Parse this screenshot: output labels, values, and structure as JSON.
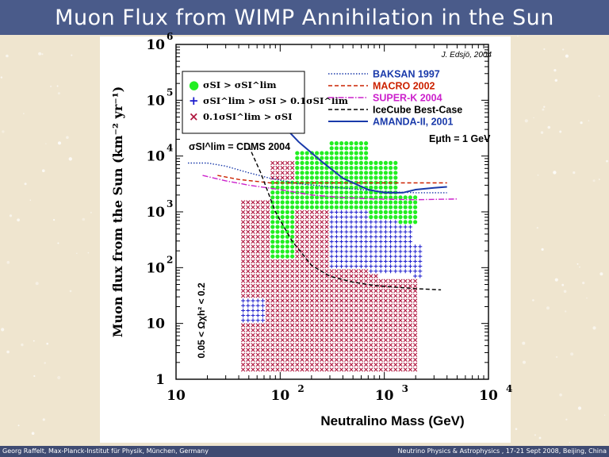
{
  "slide": {
    "title": "Muon Flux from WIMP Annihilation in the Sun",
    "footer_left": "Georg Raffelt, Max-Planck-Institut für Physik, München, Germany",
    "footer_right": "Neutrino Physics & Astrophysics , 17-21 Sept 2008, Beijing, China",
    "credit": "J. Edsjö, 2004"
  },
  "colors": {
    "title_bar": "#4a5b8a",
    "background": "#efe5cf",
    "green": "#22ee22",
    "blue": "#1a1acc",
    "red": "#b01840",
    "macro": "#cc2200",
    "superk": "#cc22cc",
    "amanda": "#1a3aaa",
    "baksan": "#1a3aaa",
    "icecube": "#000000"
  },
  "chart_data": {
    "type": "scatter",
    "title": "Muon Flux from WIMP Annihilation in the Sun",
    "xlabel": "Neutralino Mass (GeV)",
    "ylabel": "Muon flux from the Sun (km⁻² yr⁻¹)",
    "xscale": "log",
    "yscale": "log",
    "xlim": [
      10,
      10000
    ],
    "ylim": [
      1,
      1000000
    ],
    "x_ticks": [
      {
        "value": 10,
        "base": "10",
        "exp": ""
      },
      {
        "value": 100,
        "base": "10",
        "exp": "2"
      },
      {
        "value": 1000,
        "base": "10",
        "exp": "3"
      },
      {
        "value": 10000,
        "base": "10",
        "exp": "4"
      }
    ],
    "y_ticks": [
      {
        "value": 1,
        "base": "1",
        "exp": ""
      },
      {
        "value": 10,
        "base": "10",
        "exp": ""
      },
      {
        "value": 100,
        "base": "10",
        "exp": "2"
      },
      {
        "value": 1000,
        "base": "10",
        "exp": "3"
      },
      {
        "value": 10000,
        "base": "10",
        "exp": "4"
      },
      {
        "value": 100000,
        "base": "10",
        "exp": "5"
      },
      {
        "value": 1000000,
        "base": "10",
        "exp": "6"
      }
    ],
    "scatter_legend": [
      {
        "symbol": "●",
        "color": "green",
        "label": "σSI > σSI^lim"
      },
      {
        "symbol": "+",
        "color": "blue",
        "label": "σSI^lim > σSI > 0.1σSI^lim"
      },
      {
        "symbol": "×",
        "color": "red",
        "label": "0.1σSI^lim > σSI"
      }
    ],
    "cdms_label": "σSI^lim = CDMS 2004",
    "relic_label": "0.05 < Ωχh² < 0.2",
    "threshold_label": "Eμth = 1 GeV",
    "lines": [
      {
        "name": "BAKSAN 1997",
        "color_key": "baksan",
        "dash": "1.5,2",
        "width": 1.4,
        "x": [
          13,
          20,
          30,
          50,
          80,
          150,
          300,
          600,
          1000,
          2000,
          4000
        ],
        "y": [
          7500,
          7500,
          6600,
          5000,
          4000,
          3200,
          2800,
          2500,
          2300,
          2200,
          2200
        ]
      },
      {
        "name": "MACRO 2002",
        "color_key": "macro",
        "dash": "5,3",
        "width": 1.4,
        "x": [
          25,
          40,
          80,
          150,
          300,
          600,
          1000,
          2000,
          4000
        ],
        "y": [
          4500,
          3800,
          3300,
          3300,
          3300,
          3300,
          3300,
          3300,
          3300
        ]
      },
      {
        "name": "SUPER-K 2004",
        "color_key": "superk",
        "dash": "7,2,1.5,2",
        "width": 1.4,
        "x": [
          18,
          30,
          50,
          100,
          200,
          400,
          800,
          2000,
          5000
        ],
        "y": [
          4500,
          3600,
          3000,
          2500,
          2000,
          1800,
          1700,
          1650,
          1700
        ]
      },
      {
        "name": "IceCube Best-Case",
        "color_key": "icecube",
        "dash": "5,3",
        "width": 1.4,
        "x": [
          50,
          65,
          90,
          130,
          200,
          300,
          500,
          800,
          1200,
          2000,
          3500
        ],
        "y": [
          15000,
          5000,
          1000,
          300,
          110,
          70,
          55,
          48,
          45,
          42,
          40
        ]
      },
      {
        "name": "AMANDA-II, 2001",
        "color_key": "amanda",
        "dash": "",
        "width": 2,
        "x": [
          100,
          150,
          250,
          400,
          700,
          1000,
          1500,
          2000,
          3000,
          4000
        ],
        "y": [
          40000,
          18000,
          8000,
          4000,
          2500,
          2200,
          2200,
          2500,
          2700,
          2800
        ]
      }
    ],
    "scatter_regions": {
      "red": [
        {
          "x": [
            40,
            80
          ],
          "y": [
            1.3,
            1500
          ]
        },
        {
          "x": [
            80,
            140
          ],
          "y": [
            1.3,
            8000
          ]
        },
        {
          "x": [
            140,
            300
          ],
          "y": [
            1.3,
            3000
          ]
        },
        {
          "x": [
            300,
            900
          ],
          "y": [
            1.3,
            110
          ]
        },
        {
          "x": [
            900,
            2000
          ],
          "y": [
            1.3,
            60
          ]
        }
      ],
      "blue": [
        {
          "x": [
            40,
            70
          ],
          "y": [
            10,
            30
          ]
        },
        {
          "x": [
            300,
            700
          ],
          "y": [
            100,
            1000
          ]
        },
        {
          "x": [
            700,
            1800
          ],
          "y": [
            80,
            700
          ]
        },
        {
          "x": [
            1800,
            2300
          ],
          "y": [
            60,
            250
          ]
        }
      ],
      "green": [
        {
          "x": [
            80,
            140
          ],
          "y": [
            150,
            3500
          ]
        },
        {
          "x": [
            140,
            300
          ],
          "y": [
            1000,
            12000
          ]
        },
        {
          "x": [
            300,
            700
          ],
          "y": [
            1200,
            20000
          ]
        },
        {
          "x": [
            700,
            1400
          ],
          "y": [
            700,
            8000
          ]
        },
        {
          "x": [
            1400,
            2000
          ],
          "y": [
            600,
            2000
          ]
        }
      ]
    }
  }
}
